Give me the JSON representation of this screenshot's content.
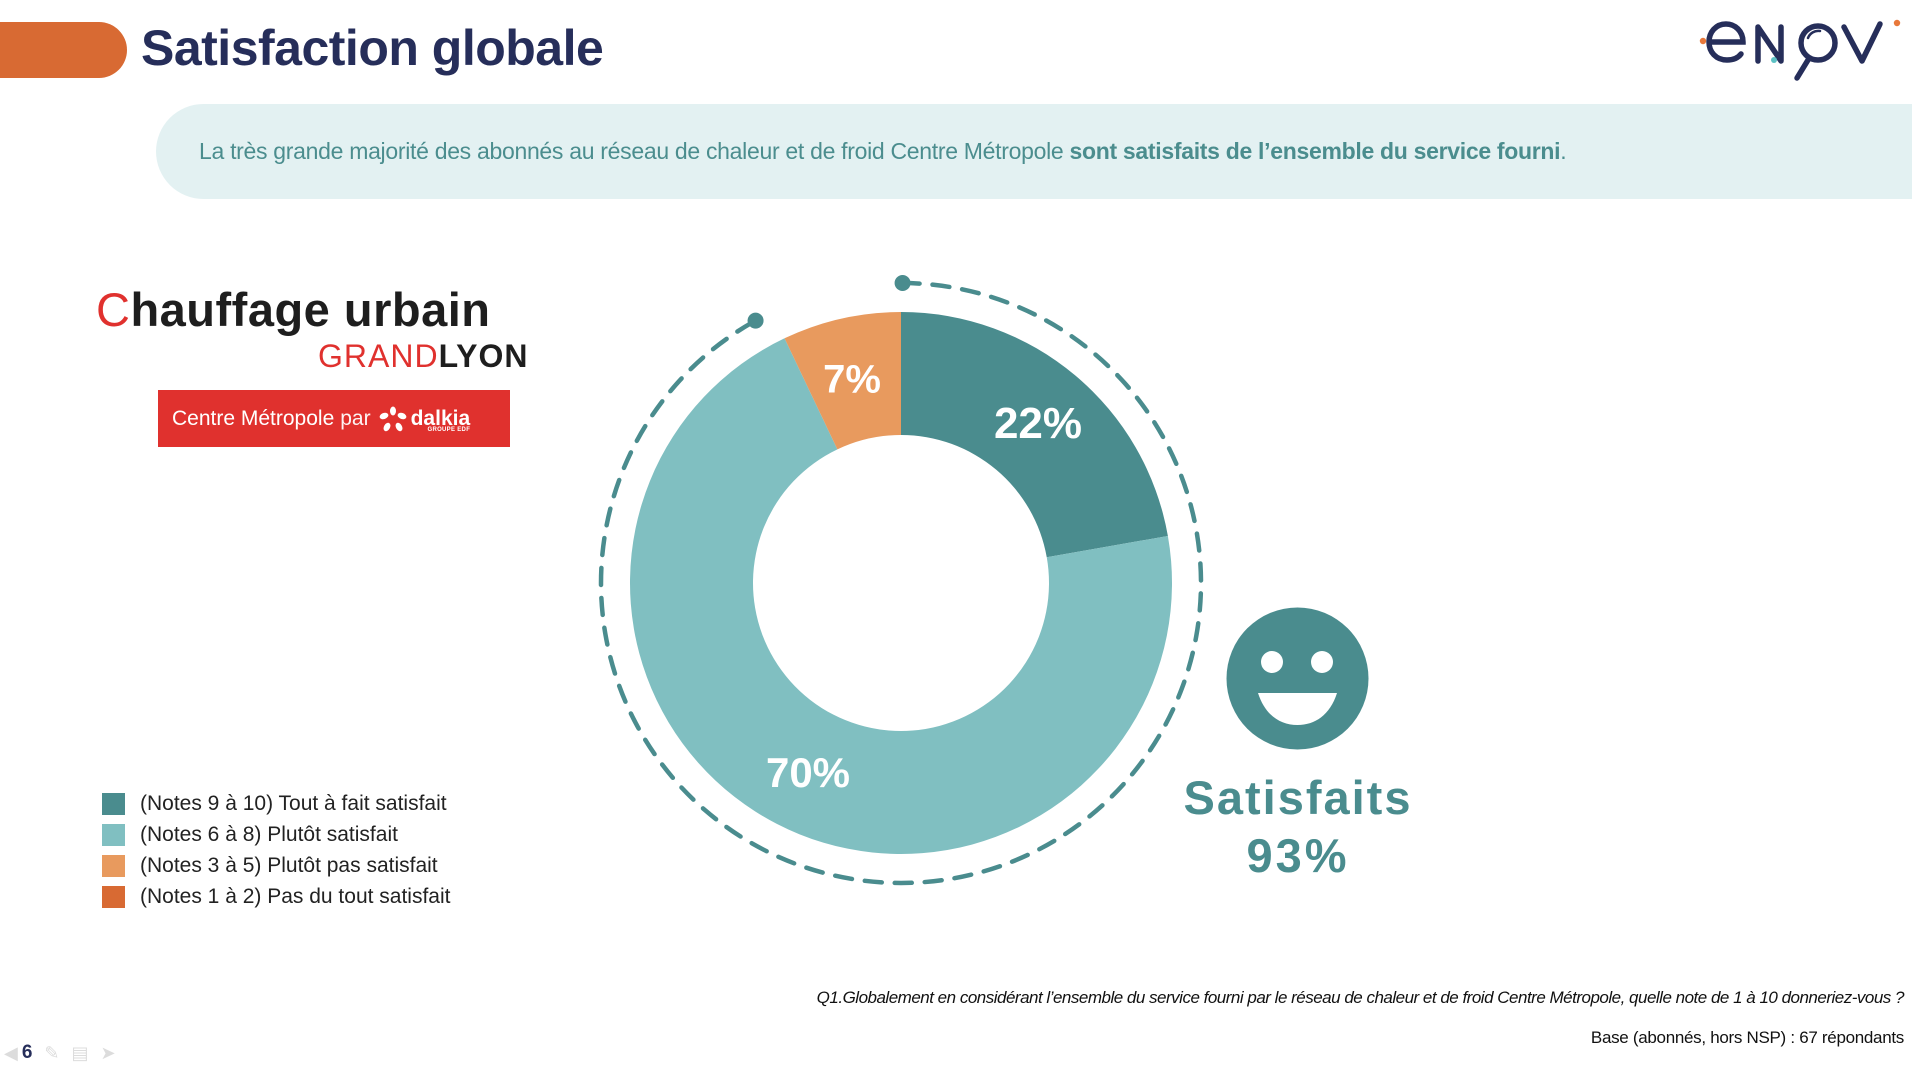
{
  "header": {
    "title": "Satisfaction globale",
    "tab_color": "#D86A33",
    "title_color": "#262E5A"
  },
  "brand_logo": {
    "name": "enov",
    "letters": [
      "e",
      "N",
      "O",
      "V"
    ],
    "color": "#262E5A",
    "accent_orange": "#E8783A",
    "accent_teal": "#5CC1C4"
  },
  "banner": {
    "text_regular": "La très grande majorité des abonnés au réseau de chaleur et de froid Centre Métropole ",
    "text_bold": "sont satisfaits de l’ensemble du service fourni",
    "text_end": ".",
    "bg_color": "#E3F1F2",
    "text_color": "#4B8D8E"
  },
  "client_logo": {
    "title_mark": "C",
    "title_rest": "hauffage urbain",
    "sub_grand": "GRAND",
    "sub_lyon": "LYON",
    "box_text": "Centre Métropole",
    "box_par": "par",
    "box_brand": "dalkia",
    "box_brand_sub": "GROUPE EDF"
  },
  "chart_data": {
    "type": "pie",
    "subtype": "donut",
    "title": "Satisfaction globale",
    "categories": [
      "(Notes 9 à 10) Tout à fait satisfait",
      "(Notes 6 à 8) Plutôt satisfait",
      "(Notes 3 à 5) Plutôt pas satisfait",
      "(Notes 1 à 2) Pas du tout satisfait"
    ],
    "values": [
      22,
      70,
      7,
      0
    ],
    "labels": [
      "22%",
      "70%",
      "7%",
      ""
    ],
    "colors": [
      "#4A8C8E",
      "#80BFC1",
      "#E89A5E",
      "#D86A33"
    ],
    "legend_position": "bottom-left",
    "summary": {
      "label": "Satisfaits",
      "value": 93,
      "value_label": "93%"
    }
  },
  "legend": {
    "items": [
      {
        "label": "(Notes 9 à 10) Tout à fait satisfait",
        "color": "#4A8C8E"
      },
      {
        "label": "(Notes 6 à 8) Plutôt satisfait",
        "color": "#80BFC1"
      },
      {
        "label": "(Notes 3 à 5) Plutôt pas satisfait",
        "color": "#E89A5E"
      },
      {
        "label": "(Notes 1 à 2) Pas du tout satisfait",
        "color": "#D86A33"
      }
    ]
  },
  "summary": {
    "label": "Satisfaits",
    "value": "93%",
    "color": "#4A8C8E",
    "icon": "smiley-icon"
  },
  "footer": {
    "question": "Q1.Globalement en considérant l’ensemble du service fourni par le réseau de chaleur et de froid Centre Métropole, quelle note de 1 à 10 donneriez-vous ?",
    "base": "Base (abonnés, hors NSP)  : 67 répondants",
    "slide_number": "6"
  }
}
